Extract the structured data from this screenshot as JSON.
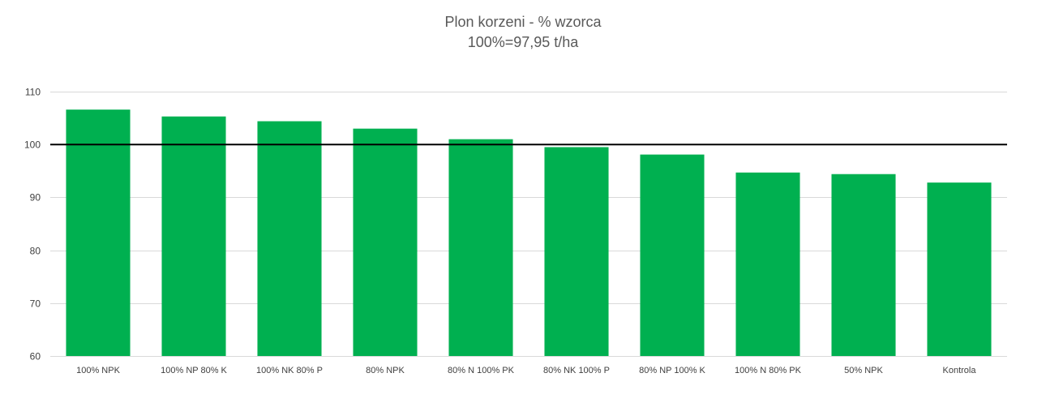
{
  "chart_data": {
    "type": "bar",
    "title": "Plon korzeni - % wzorca",
    "subtitle": "100%=97,95 t/ha",
    "xlabel": "",
    "ylabel": "",
    "categories": [
      "100% NPK",
      "100% NP 80% K",
      "100% NK 80% P",
      "80% NPK",
      "80% N 100% PK",
      "80% NK 100% P",
      "80% NP 100% K",
      "100% N 80% PK",
      "50% NPK",
      "Kontrola"
    ],
    "values": [
      106.6,
      105.3,
      104.4,
      103.0,
      101.0,
      99.5,
      98.1,
      94.7,
      94.4,
      92.8
    ],
    "ylim": [
      60,
      110
    ],
    "yticks": [
      60,
      70,
      80,
      90,
      100,
      110
    ],
    "reference_line": 100,
    "grid": true,
    "legend": "none",
    "colors": {
      "bar": "#00B050",
      "reference_line": "#000000",
      "grid": "#D9D9D9",
      "tick_label": "#404040",
      "title": "#595959"
    }
  }
}
